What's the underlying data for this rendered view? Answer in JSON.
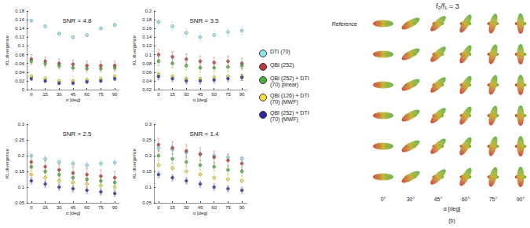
{
  "chart_data": [
    {
      "type": "scatter",
      "title": "SNR = 4.8",
      "x_label": "α [deg]",
      "y_label": "KL divergence",
      "x": [
        0,
        15,
        30,
        45,
        60,
        75,
        90
      ],
      "xlim": [
        -5,
        95
      ],
      "xticks": [
        0,
        15,
        30,
        45,
        60,
        75,
        90
      ],
      "ylim": [
        0,
        0.18
      ],
      "yticks": [
        0,
        0.02,
        0.04,
        0.06,
        0.08,
        0.1,
        0.12,
        0.14,
        0.16,
        0.18
      ],
      "grid": false,
      "series": [
        {
          "name": "DTI (70)",
          "color": "#8fe3ea",
          "values": [
            0.158,
            0.145,
            0.128,
            0.12,
            0.125,
            0.14,
            0.148
          ],
          "errors": [
            0.003,
            0.003,
            0.003,
            0.003,
            0.003,
            0.003,
            0.003
          ]
        },
        {
          "name": "QBI (252)",
          "color": "#c0393b",
          "values": [
            0.07,
            0.065,
            0.06,
            0.058,
            0.055,
            0.055,
            0.055
          ],
          "errors": [
            0.01,
            0.01,
            0.01,
            0.01,
            0.01,
            0.01,
            0.01
          ]
        },
        {
          "name": "QBI (252) + DTI (70) (linear)",
          "color": "#4caf3a",
          "values": [
            0.065,
            0.06,
            0.055,
            0.05,
            0.048,
            0.048,
            0.05
          ],
          "errors": [
            0.008,
            0.008,
            0.008,
            0.008,
            0.008,
            0.008,
            0.008
          ]
        },
        {
          "name": "QBI (126) + DTI (70) (MWF)",
          "color": "#f0e040",
          "values": [
            0.03,
            0.025,
            0.02,
            0.02,
            0.022,
            0.025,
            0.03
          ],
          "errors": [
            0.005,
            0.005,
            0.005,
            0.005,
            0.005,
            0.005,
            0.005
          ]
        },
        {
          "name": "QBI (252) + DTI (70) (MWF)",
          "color": "#2a2aa0",
          "values": [
            0.025,
            0.02,
            0.015,
            0.015,
            0.018,
            0.02,
            0.025
          ],
          "errors": [
            0.004,
            0.004,
            0.004,
            0.004,
            0.004,
            0.004,
            0.004
          ]
        }
      ]
    },
    {
      "type": "scatter",
      "title": "SNR = 3.5",
      "x_label": "α [deg]",
      "y_label": "KL divergence",
      "x": [
        0,
        15,
        30,
        45,
        60,
        75,
        90
      ],
      "xlim": [
        -5,
        95
      ],
      "xticks": [
        0,
        15,
        30,
        45,
        60,
        75,
        90
      ],
      "ylim": [
        0.02,
        0.2
      ],
      "yticks": [
        0.02,
        0.04,
        0.06,
        0.08,
        0.1,
        0.12,
        0.14,
        0.16,
        0.18,
        0.2
      ],
      "grid": false,
      "series": [
        {
          "name": "DTI (70)",
          "color": "#8fe3ea",
          "values": [
            0.175,
            0.165,
            0.15,
            0.14,
            0.145,
            0.152,
            0.155
          ],
          "errors": [
            0.01,
            0.01,
            0.01,
            0.01,
            0.01,
            0.01,
            0.01
          ]
        },
        {
          "name": "QBI (252)",
          "color": "#c0393b",
          "values": [
            0.1,
            0.095,
            0.09,
            0.085,
            0.082,
            0.085,
            0.08
          ],
          "errors": [
            0.012,
            0.012,
            0.012,
            0.012,
            0.012,
            0.012,
            0.012
          ]
        },
        {
          "name": "QBI (252) + DTI (70) (linear)",
          "color": "#4caf3a",
          "values": [
            0.085,
            0.08,
            0.075,
            0.07,
            0.07,
            0.072,
            0.075
          ],
          "errors": [
            0.01,
            0.01,
            0.01,
            0.01,
            0.01,
            0.01,
            0.01
          ]
        },
        {
          "name": "QBI (126) + DTI (70) (MWF)",
          "color": "#f0e040",
          "values": [
            0.055,
            0.05,
            0.045,
            0.045,
            0.048,
            0.05,
            0.05
          ],
          "errors": [
            0.008,
            0.008,
            0.008,
            0.008,
            0.008,
            0.008,
            0.008
          ]
        },
        {
          "name": "QBI (252) + DTI (70) (MWF)",
          "color": "#2a2aa0",
          "values": [
            0.05,
            0.045,
            0.04,
            0.04,
            0.042,
            0.045,
            0.048
          ],
          "errors": [
            0.007,
            0.007,
            0.007,
            0.007,
            0.007,
            0.007,
            0.007
          ]
        }
      ]
    },
    {
      "type": "scatter",
      "title": "SNR = 2.5",
      "x_label": "α [deg]",
      "y_label": "KL divergence",
      "x": [
        0,
        15,
        30,
        45,
        60,
        75,
        90
      ],
      "xlim": [
        -5,
        95
      ],
      "xticks": [
        0,
        15,
        30,
        45,
        60,
        75,
        90
      ],
      "ylim": [
        0.05,
        0.3
      ],
      "yticks": [
        0.05,
        0.1,
        0.15,
        0.2,
        0.25,
        0.3
      ],
      "grid": false,
      "series": [
        {
          "name": "DTI (70)",
          "color": "#8fe3ea",
          "values": [
            0.2,
            0.19,
            0.18,
            0.175,
            0.17,
            0.175,
            0.178
          ],
          "errors": [
            0.01,
            0.01,
            0.01,
            0.01,
            0.01,
            0.01,
            0.01
          ]
        },
        {
          "name": "QBI (252)",
          "color": "#c0393b",
          "values": [
            0.18,
            0.165,
            0.155,
            0.145,
            0.14,
            0.135,
            0.13
          ],
          "errors": [
            0.02,
            0.02,
            0.02,
            0.02,
            0.02,
            0.02,
            0.02
          ]
        },
        {
          "name": "QBI (252) + DTI (70) (linear)",
          "color": "#4caf3a",
          "values": [
            0.165,
            0.15,
            0.14,
            0.13,
            0.125,
            0.12,
            0.115
          ],
          "errors": [
            0.015,
            0.015,
            0.015,
            0.015,
            0.015,
            0.015,
            0.015
          ]
        },
        {
          "name": "QBI (126) + DTI (70) (MWF)",
          "color": "#f0e040",
          "values": [
            0.14,
            0.13,
            0.12,
            0.115,
            0.11,
            0.105,
            0.1
          ],
          "errors": [
            0.012,
            0.012,
            0.012,
            0.012,
            0.012,
            0.012,
            0.012
          ]
        },
        {
          "name": "QBI (252) + DTI (70) (MWF)",
          "color": "#2a2aa0",
          "values": [
            0.12,
            0.11,
            0.1,
            0.095,
            0.09,
            0.085,
            0.08
          ],
          "errors": [
            0.01,
            0.01,
            0.01,
            0.01,
            0.01,
            0.01,
            0.01
          ]
        }
      ]
    },
    {
      "type": "scatter",
      "title": "SNR = 1.4",
      "x_label": "α [deg]",
      "y_label": "KL divergence",
      "x": [
        0,
        15,
        30,
        45,
        60,
        75,
        90
      ],
      "xlim": [
        -5,
        95
      ],
      "xticks": [
        0,
        15,
        30,
        45,
        60,
        75,
        90
      ],
      "ylim": [
        0.05,
        0.3
      ],
      "yticks": [
        0.05,
        0.1,
        0.15,
        0.2,
        0.25,
        0.3
      ],
      "grid": false,
      "series": [
        {
          "name": "DTI (70)",
          "color": "#8fe3ea",
          "values": [
            0.225,
            0.22,
            0.21,
            0.205,
            0.2,
            0.195,
            0.19
          ],
          "errors": [
            0.01,
            0.01,
            0.01,
            0.01,
            0.01,
            0.01,
            0.01
          ]
        },
        {
          "name": "QBI (252)",
          "color": "#c0393b",
          "values": [
            0.235,
            0.225,
            0.215,
            0.205,
            0.195,
            0.185,
            0.175
          ],
          "errors": [
            0.02,
            0.02,
            0.02,
            0.02,
            0.02,
            0.02,
            0.02
          ]
        },
        {
          "name": "QBI (252) + DTI (70) (linear)",
          "color": "#4caf3a",
          "values": [
            0.2,
            0.19,
            0.18,
            0.17,
            0.165,
            0.155,
            0.15
          ],
          "errors": [
            0.015,
            0.015,
            0.015,
            0.015,
            0.015,
            0.015,
            0.015
          ]
        },
        {
          "name": "QBI (126) + DTI (70) (MWF)",
          "color": "#f0e040",
          "values": [
            0.17,
            0.16,
            0.15,
            0.14,
            0.13,
            0.125,
            0.12
          ],
          "errors": [
            0.012,
            0.012,
            0.012,
            0.012,
            0.012,
            0.012,
            0.012
          ]
        },
        {
          "name": "QBI (252) + DTI (70) (MWF)",
          "color": "#2a2aa0",
          "values": [
            0.14,
            0.13,
            0.12,
            0.11,
            0.1,
            0.095,
            0.09
          ],
          "errors": [
            0.01,
            0.01,
            0.01,
            0.01,
            0.01,
            0.01,
            0.01
          ]
        }
      ]
    }
  ],
  "glyph_panel": {
    "title": "f₂/f₁ = 3",
    "ratio": 3,
    "reference_label": "Reference",
    "columns": [
      {
        "value": 0,
        "label": "0°"
      },
      {
        "value": 30,
        "label": "30°"
      },
      {
        "value": 45,
        "label": "45°"
      },
      {
        "value": 60,
        "label": "60°"
      },
      {
        "value": 75,
        "label": "75°"
      },
      {
        "value": 90,
        "label": "90°"
      }
    ],
    "axis_label": "α [deg]",
    "panel_label": "(b)"
  }
}
